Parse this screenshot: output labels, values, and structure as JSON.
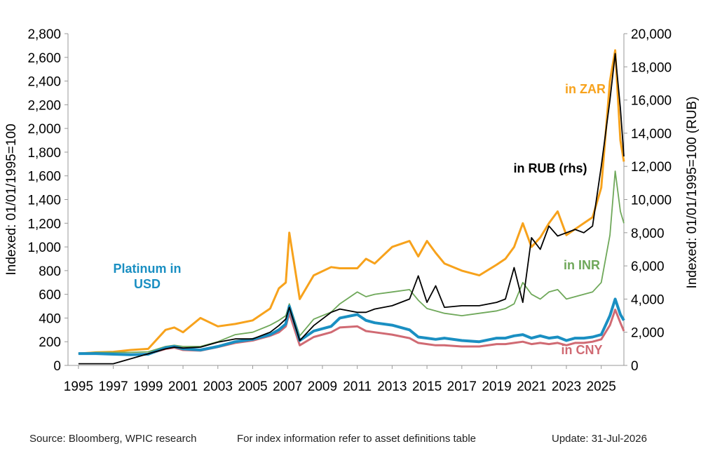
{
  "chart_data": {
    "type": "line",
    "y_label": "Indexed: 01/01/1995=100",
    "y2_label": "Indexed: 01/01/1995=100 (RUB)",
    "x": [
      1995,
      1996,
      1997,
      1998,
      1999,
      2000,
      2000.5,
      2001,
      2002,
      2003,
      2004,
      2005,
      2006,
      2006.5,
      2006.9,
      2007.1,
      2007.7,
      2008.5,
      2009.5,
      2010,
      2011,
      2011.5,
      2012,
      2013,
      2014,
      2014.5,
      2015,
      2015.5,
      2016,
      2017,
      2018,
      2019,
      2019.5,
      2020,
      2020.5,
      2021,
      2021.5,
      2022,
      2022.5,
      2023,
      2023.5,
      2024,
      2024.5,
      2025,
      2025.5,
      2025.8,
      2026.1,
      2026.3
    ],
    "xlim": [
      1994.4,
      2026.3
    ],
    "xticks": [
      1995,
      1997,
      1999,
      2001,
      2003,
      2005,
      2007,
      2009,
      2011,
      2013,
      2015,
      2017,
      2019,
      2021,
      2023,
      2025
    ],
    "ylim": [
      0,
      2800
    ],
    "yticks": [
      0,
      200,
      400,
      600,
      800,
      {
        "value": 1000,
        "label": "1,000"
      },
      {
        "value": 1200,
        "label": "1,200"
      },
      {
        "value": 1400,
        "label": "1,400"
      },
      {
        "value": 1600,
        "label": "1,600"
      },
      {
        "value": 1800,
        "label": "1,800"
      },
      {
        "value": 2000,
        "label": "2,000"
      },
      {
        "value": 2200,
        "label": "2,200"
      },
      {
        "value": 2400,
        "label": "2,400"
      },
      {
        "value": 2600,
        "label": "2,600"
      },
      {
        "value": 2800,
        "label": "2,800"
      }
    ],
    "y2lim": [
      0,
      20000
    ],
    "y2ticks": [
      0,
      {
        "value": 2000,
        "label": "2,000"
      },
      {
        "value": 4000,
        "label": "4,000"
      },
      {
        "value": 6000,
        "label": "6,000"
      },
      {
        "value": 8000,
        "label": "8,000"
      },
      {
        "value": 10000,
        "label": "10,000"
      },
      {
        "value": 12000,
        "label": "12,000"
      },
      {
        "value": 14000,
        "label": "14,000"
      },
      {
        "value": 16000,
        "label": "16,000"
      },
      {
        "value": 18000,
        "label": "18,000"
      },
      {
        "value": 20000,
        "label": "20,000"
      }
    ],
    "series": [
      {
        "name": "in ZAR",
        "color": "#f7a21c",
        "values": [
          100,
          110,
          115,
          130,
          140,
          300,
          320,
          280,
          400,
          330,
          350,
          380,
          480,
          650,
          700,
          1120,
          560,
          760,
          830,
          820,
          820,
          900,
          860,
          1000,
          1050,
          920,
          1050,
          950,
          860,
          800,
          760,
          850,
          900,
          1000,
          1200,
          1000,
          1080,
          1200,
          1300,
          1100,
          1150,
          1200,
          1250,
          1500,
          2400,
          2660,
          1900,
          1720
        ]
      },
      {
        "name": "in INR",
        "color": "#6fa85a",
        "values": [
          100,
          110,
          110,
          110,
          115,
          160,
          170,
          160,
          160,
          200,
          260,
          280,
          340,
          380,
          420,
          520,
          250,
          390,
          450,
          520,
          620,
          580,
          600,
          620,
          640,
          550,
          480,
          460,
          440,
          420,
          440,
          460,
          480,
          520,
          700,
          600,
          560,
          620,
          640,
          560,
          580,
          600,
          620,
          700,
          1100,
          1640,
          1300,
          1200
        ]
      },
      {
        "name": "in CNY",
        "color": "#d06a73",
        "values": [
          100,
          100,
          95,
          90,
          95,
          140,
          150,
          130,
          125,
          155,
          190,
          210,
          250,
          280,
          330,
          440,
          170,
          240,
          280,
          320,
          330,
          290,
          280,
          260,
          230,
          190,
          180,
          170,
          170,
          160,
          160,
          180,
          180,
          190,
          200,
          180,
          190,
          180,
          190,
          170,
          190,
          190,
          200,
          220,
          340,
          470,
          360,
          290
        ]
      },
      {
        "name": "Platinum in USD",
        "color": "#1a8fc2",
        "values": [
          100,
          100,
          95,
          90,
          95,
          150,
          160,
          140,
          130,
          160,
          200,
          220,
          260,
          300,
          350,
          500,
          210,
          290,
          330,
          400,
          430,
          380,
          360,
          340,
          300,
          240,
          230,
          220,
          230,
          210,
          200,
          230,
          230,
          250,
          260,
          230,
          250,
          230,
          240,
          210,
          230,
          230,
          240,
          260,
          420,
          560,
          430,
          380
        ]
      },
      {
        "name": "in RUB (rhs)",
        "color": "#000000",
        "axis": "y2",
        "values": [
          100,
          100,
          100,
          400,
          700,
          1000,
          1100,
          1050,
          1100,
          1400,
          1600,
          1600,
          2000,
          2400,
          2800,
          3500,
          1500,
          2400,
          3200,
          3400,
          3200,
          3200,
          3400,
          3600,
          4000,
          5400,
          3800,
          4800,
          3500,
          3600,
          3600,
          3800,
          4000,
          5900,
          3800,
          7700,
          7000,
          8400,
          7800,
          8000,
          8200,
          8000,
          8400,
          12000,
          16000,
          18800,
          15500,
          12600
        ]
      }
    ],
    "footer": [
      "Source: Bloomberg, WPIC research",
      "For index information refer to asset definitions table",
      "Update: 31-Jul-2026"
    ]
  }
}
